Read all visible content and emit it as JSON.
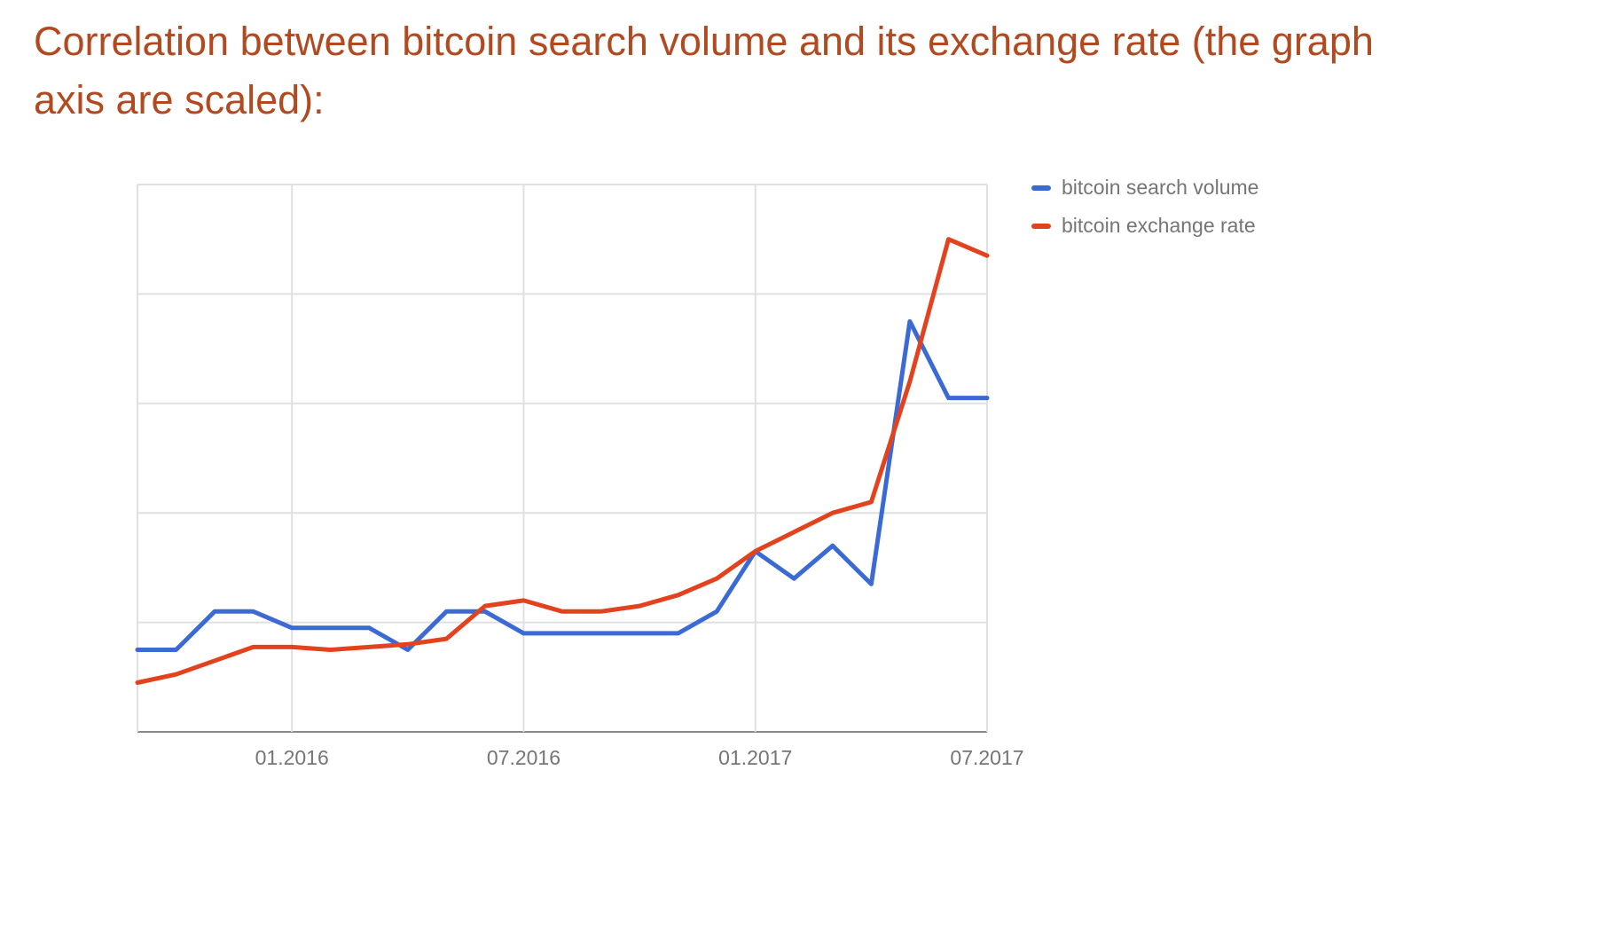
{
  "title": "Correlation between bitcoin search volume and its exchange rate (the graph axis are scaled):",
  "colors": {
    "title": "#b14a21",
    "axis_text": "#757575",
    "grid": "#e0e0e0",
    "axis_line": "#888888",
    "background": "#ffffff",
    "series_blue": "#3b6ad5",
    "series_red": "#e2431e"
  },
  "legend": [
    {
      "label": "bitcoin search volume",
      "color": "#3b6ad5"
    },
    {
      "label": "bitcoin exchange rate",
      "color": "#e2431e"
    }
  ],
  "chart_data": {
    "type": "line",
    "x": [
      "2015-09",
      "2015-10",
      "2015-11",
      "2015-12",
      "2016-01",
      "2016-02",
      "2016-03",
      "2016-04",
      "2016-05",
      "2016-06",
      "2016-07",
      "2016-08",
      "2016-09",
      "2016-10",
      "2016-11",
      "2016-12",
      "2017-01",
      "2017-02",
      "2017-03",
      "2017-04",
      "2017-05",
      "2017-06",
      "2017-07"
    ],
    "series": [
      {
        "name": "bitcoin search volume",
        "color": "#3b6ad5",
        "values": [
          15,
          15,
          22,
          22,
          19,
          19,
          19,
          15,
          22,
          22,
          18,
          18,
          18,
          18,
          18,
          22,
          33,
          28,
          34,
          27,
          75,
          61,
          61
        ]
      },
      {
        "name": "bitcoin exchange rate",
        "color": "#e2431e",
        "values": [
          9,
          10.5,
          13,
          15.5,
          15.5,
          15,
          15.5,
          16,
          17,
          23,
          24,
          22,
          22,
          23,
          25,
          28,
          33,
          36.5,
          40,
          42,
          64,
          90,
          87
        ]
      }
    ],
    "ticks": [
      {
        "index": 4,
        "label": "01.2016"
      },
      {
        "index": 10,
        "label": "07.2016"
      },
      {
        "index": 16,
        "label": "01.2017"
      },
      {
        "index": 22,
        "label": "07.2017"
      }
    ],
    "ylim": [
      0,
      100
    ],
    "y_gridline_count": 6,
    "grid": true,
    "legend_position": "top-right"
  }
}
